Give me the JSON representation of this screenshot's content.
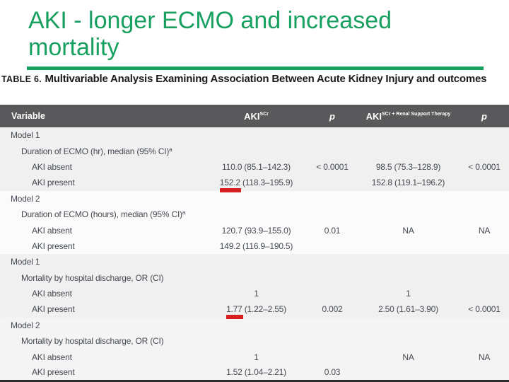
{
  "slide": {
    "title": "AKI - longer ECMO and increased mortality",
    "accent_color": "#17a05f",
    "mark_color": "#d42020"
  },
  "caption": {
    "prefix": "TABLE 6.",
    "text": "Multivariable Analysis Examining Association Between Acute Kidney Injury and outcomes"
  },
  "table": {
    "header_bg": "#59595c",
    "header": {
      "variable": "Variable",
      "aki_scr": {
        "base": "AKI",
        "sup": "SCr"
      },
      "p1": "p",
      "aki_rst": {
        "base": "AKI",
        "sup": "SCr + Renal Support Therapy"
      },
      "p2": "p"
    },
    "rows": [
      {
        "label": "Model 1",
        "indent": 1,
        "section": 0,
        "aki_scr": "",
        "p1": "",
        "aki_rst": "",
        "p2": ""
      },
      {
        "label": "Duration of ECMO (hr), median (95% CI)",
        "sup": "a",
        "indent": 2,
        "section": 0,
        "aki_scr": "",
        "p1": "",
        "aki_rst": "",
        "p2": ""
      },
      {
        "label": "AKI absent",
        "indent": 3,
        "section": 0,
        "aki_scr": "110.0 (85.1–142.3)",
        "p1": "< 0.0001",
        "aki_rst": "98.5 (75.3–128.9)",
        "p2": "< 0.0001"
      },
      {
        "label": "AKI present",
        "indent": 3,
        "section": 0,
        "aki_scr": "152.2 (118.3–195.9)",
        "mark": "152.2",
        "p1": "",
        "aki_rst": "152.8 (119.1–196.2)",
        "p2": ""
      },
      {
        "label": "Model 2",
        "indent": 1,
        "section": 1,
        "aki_scr": "",
        "p1": "",
        "aki_rst": "",
        "p2": ""
      },
      {
        "label": "Duration of ECMO (hours), median (95% CI)",
        "sup": "a",
        "indent": 2,
        "section": 1,
        "aki_scr": "",
        "p1": "",
        "aki_rst": "",
        "p2": ""
      },
      {
        "label": "AKI absent",
        "indent": 3,
        "section": 1,
        "aki_scr": "120.7 (93.9–155.0)",
        "p1": "0.01",
        "aki_rst": "NA",
        "p2": "NA"
      },
      {
        "label": "AKI present",
        "indent": 3,
        "section": 1,
        "aki_scr": "149.2 (116.9–190.5)",
        "p1": "",
        "aki_rst": "",
        "p2": ""
      },
      {
        "label": "Model 1",
        "indent": 1,
        "section": 2,
        "aki_scr": "",
        "p1": "",
        "aki_rst": "",
        "p2": ""
      },
      {
        "label": "Mortality by hospital discharge, OR (CI)",
        "indent": 2,
        "section": 2,
        "aki_scr": "",
        "p1": "",
        "aki_rst": "",
        "p2": ""
      },
      {
        "label": "AKI absent",
        "indent": 3,
        "section": 2,
        "aki_scr": "1",
        "p1": "",
        "aki_rst": "1",
        "p2": ""
      },
      {
        "label": "AKI present",
        "indent": 3,
        "section": 2,
        "aki_scr": "1.77 (1.22–2.55)",
        "mark": "1.77",
        "p1": "0.002",
        "aki_rst": "2.50 (1.61–3.90)",
        "p2": "< 0.0001"
      },
      {
        "label": "Model 2",
        "indent": 1,
        "section": 3,
        "aki_scr": "",
        "p1": "",
        "aki_rst": "",
        "p2": ""
      },
      {
        "label": "Mortality by hospital discharge, OR (CI)",
        "indent": 2,
        "section": 3,
        "aki_scr": "",
        "p1": "",
        "aki_rst": "",
        "p2": ""
      },
      {
        "label": "AKI absent",
        "indent": 3,
        "section": 3,
        "aki_scr": "1",
        "p1": "",
        "aki_rst": "NA",
        "p2": "NA"
      },
      {
        "label": "AKI present",
        "indent": 3,
        "section": 3,
        "aki_scr": "1.52 (1.04–2.21)",
        "p1": "0.03",
        "aki_rst": "",
        "p2": ""
      }
    ]
  }
}
